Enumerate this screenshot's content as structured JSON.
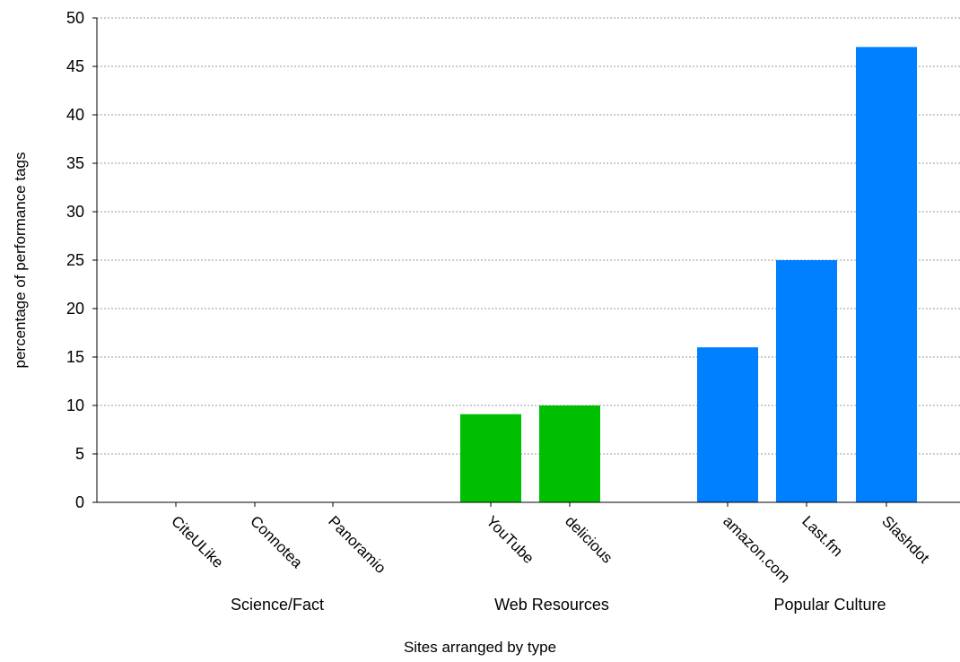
{
  "chart_data": {
    "type": "bar",
    "xlabel": "Sites arranged by type",
    "ylabel": "percentage of performance tags",
    "ylim": [
      0,
      50
    ],
    "yticks": [
      0,
      5,
      10,
      15,
      20,
      25,
      30,
      35,
      40,
      45,
      50
    ],
    "grid": true,
    "groups": [
      {
        "label": "Science/Fact",
        "color": "#00bf00",
        "categories": [
          "CiteULike",
          "Connotea",
          "Panoramio"
        ],
        "values": [
          0,
          0,
          0
        ]
      },
      {
        "label": "Web Resources",
        "color": "#00bf00",
        "categories": [
          "YouTube",
          "delicious"
        ],
        "values": [
          9.1,
          10
        ]
      },
      {
        "label": "Popular Culture",
        "color": "#007fff",
        "categories": [
          "amazon.com",
          "Last.fm",
          "Slashdot"
        ],
        "values": [
          16,
          25,
          47
        ]
      }
    ]
  }
}
